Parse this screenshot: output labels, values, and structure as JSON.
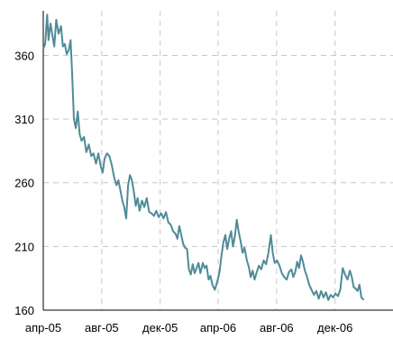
{
  "chart_data": {
    "type": "line",
    "title": "",
    "xlabel": "",
    "ylabel": "",
    "x_ticks": [
      "апр-05",
      "авг-05",
      "дек-05",
      "апр-06",
      "авг-06",
      "дек-06"
    ],
    "x_tick_dates": [
      "2005-04-01",
      "2005-08-01",
      "2005-12-01",
      "2006-04-01",
      "2006-08-01",
      "2006-12-01"
    ],
    "xlim": [
      "2005-04-01",
      "2007-04-01"
    ],
    "y_ticks": [
      160,
      210,
      260,
      310,
      360
    ],
    "ylim": [
      160,
      395
    ],
    "grid": true,
    "legend": "none",
    "series": [
      {
        "color": "#4f8b98",
        "points": [
          [
            "2005-04-01",
            365
          ],
          [
            "2005-04-05",
            369
          ],
          [
            "2005-04-09",
            392
          ],
          [
            "2005-04-12",
            372
          ],
          [
            "2005-04-16",
            385
          ],
          [
            "2005-04-20",
            376
          ],
          [
            "2005-04-24",
            367
          ],
          [
            "2005-04-28",
            388
          ],
          [
            "2005-05-03",
            377
          ],
          [
            "2005-05-08",
            383
          ],
          [
            "2005-05-12",
            367
          ],
          [
            "2005-05-16",
            369
          ],
          [
            "2005-05-20",
            361
          ],
          [
            "2005-05-24",
            364
          ],
          [
            "2005-05-28",
            372
          ],
          [
            "2005-05-31",
            348
          ],
          [
            "2005-06-04",
            310
          ],
          [
            "2005-06-08",
            303
          ],
          [
            "2005-06-12",
            316
          ],
          [
            "2005-06-16",
            298
          ],
          [
            "2005-06-20",
            293
          ],
          [
            "2005-06-25",
            296
          ],
          [
            "2005-06-30",
            284
          ],
          [
            "2005-07-05",
            290
          ],
          [
            "2005-07-10",
            281
          ],
          [
            "2005-07-15",
            283
          ],
          [
            "2005-07-20",
            275
          ],
          [
            "2005-07-25",
            283
          ],
          [
            "2005-07-30",
            273
          ],
          [
            "2005-08-03",
            268
          ],
          [
            "2005-08-07",
            279
          ],
          [
            "2005-08-12",
            283
          ],
          [
            "2005-08-17",
            281
          ],
          [
            "2005-08-22",
            274
          ],
          [
            "2005-08-27",
            264
          ],
          [
            "2005-09-01",
            258
          ],
          [
            "2005-09-05",
            262
          ],
          [
            "2005-09-09",
            254
          ],
          [
            "2005-09-13",
            246
          ],
          [
            "2005-09-17",
            241
          ],
          [
            "2005-09-21",
            232
          ],
          [
            "2005-09-25",
            258
          ],
          [
            "2005-09-29",
            266
          ],
          [
            "2005-10-03",
            262
          ],
          [
            "2005-10-07",
            253
          ],
          [
            "2005-10-11",
            242
          ],
          [
            "2005-10-15",
            248
          ],
          [
            "2005-10-19",
            238
          ],
          [
            "2005-10-24",
            246
          ],
          [
            "2005-10-29",
            241
          ],
          [
            "2005-11-03",
            248
          ],
          [
            "2005-11-08",
            237
          ],
          [
            "2005-11-13",
            236
          ],
          [
            "2005-11-18",
            234
          ],
          [
            "2005-11-23",
            238
          ],
          [
            "2005-11-28",
            233
          ],
          [
            "2005-12-03",
            236
          ],
          [
            "2005-12-08",
            232
          ],
          [
            "2005-12-13",
            237
          ],
          [
            "2005-12-18",
            229
          ],
          [
            "2005-12-23",
            227
          ],
          [
            "2005-12-28",
            222
          ],
          [
            "2006-01-02",
            220
          ],
          [
            "2006-01-06",
            216
          ],
          [
            "2006-01-10",
            226
          ],
          [
            "2006-01-14",
            219
          ],
          [
            "2006-01-18",
            212
          ],
          [
            "2006-01-22",
            209
          ],
          [
            "2006-01-26",
            208
          ],
          [
            "2006-01-30",
            192
          ],
          [
            "2006-02-03",
            188
          ],
          [
            "2006-02-07",
            196
          ],
          [
            "2006-02-11",
            189
          ],
          [
            "2006-02-15",
            193
          ],
          [
            "2006-02-19",
            197
          ],
          [
            "2006-02-23",
            189
          ],
          [
            "2006-02-28",
            197
          ],
          [
            "2006-03-04",
            193
          ],
          [
            "2006-03-08",
            195
          ],
          [
            "2006-03-12",
            184
          ],
          [
            "2006-03-16",
            187
          ],
          [
            "2006-03-20",
            180
          ],
          [
            "2006-03-25",
            176
          ],
          [
            "2006-03-30",
            182
          ],
          [
            "2006-04-04",
            190
          ],
          [
            "2006-04-08",
            203
          ],
          [
            "2006-04-12",
            213
          ],
          [
            "2006-04-16",
            219
          ],
          [
            "2006-04-20",
            208
          ],
          [
            "2006-04-24",
            216
          ],
          [
            "2006-04-28",
            222
          ],
          [
            "2006-05-02",
            210
          ],
          [
            "2006-05-06",
            218
          ],
          [
            "2006-05-10",
            231
          ],
          [
            "2006-05-14",
            221
          ],
          [
            "2006-05-18",
            214
          ],
          [
            "2006-05-22",
            205
          ],
          [
            "2006-05-26",
            209
          ],
          [
            "2006-05-31",
            199
          ],
          [
            "2006-06-04",
            194
          ],
          [
            "2006-06-08",
            186
          ],
          [
            "2006-06-12",
            191
          ],
          [
            "2006-06-16",
            184
          ],
          [
            "2006-06-20",
            189
          ],
          [
            "2006-06-25",
            195
          ],
          [
            "2006-06-30",
            192
          ],
          [
            "2006-07-05",
            199
          ],
          [
            "2006-07-10",
            196
          ],
          [
            "2006-07-15",
            205
          ],
          [
            "2006-07-20",
            219
          ],
          [
            "2006-07-24",
            205
          ],
          [
            "2006-07-28",
            197
          ],
          [
            "2006-08-02",
            199
          ],
          [
            "2006-08-07",
            195
          ],
          [
            "2006-08-12",
            189
          ],
          [
            "2006-08-17",
            186
          ],
          [
            "2006-08-22",
            184
          ],
          [
            "2006-08-27",
            190
          ],
          [
            "2006-09-01",
            192
          ],
          [
            "2006-09-05",
            186
          ],
          [
            "2006-09-09",
            190
          ],
          [
            "2006-09-13",
            198
          ],
          [
            "2006-09-17",
            193
          ],
          [
            "2006-09-21",
            203
          ],
          [
            "2006-09-25",
            198
          ],
          [
            "2006-09-29",
            191
          ],
          [
            "2006-10-03",
            187
          ],
          [
            "2006-10-08",
            180
          ],
          [
            "2006-10-13",
            176
          ],
          [
            "2006-10-18",
            172
          ],
          [
            "2006-10-23",
            175
          ],
          [
            "2006-10-28",
            169
          ],
          [
            "2006-11-02",
            175
          ],
          [
            "2006-11-07",
            170
          ],
          [
            "2006-11-12",
            174
          ],
          [
            "2006-11-17",
            168
          ],
          [
            "2006-11-22",
            172
          ],
          [
            "2006-11-27",
            170
          ],
          [
            "2006-12-02",
            173
          ],
          [
            "2006-12-07",
            171
          ],
          [
            "2006-12-12",
            176
          ],
          [
            "2006-12-17",
            193
          ],
          [
            "2006-12-22",
            188
          ],
          [
            "2006-12-27",
            184
          ],
          [
            "2007-01-01",
            191
          ],
          [
            "2007-01-05",
            186
          ],
          [
            "2007-01-09",
            178
          ],
          [
            "2007-01-13",
            177
          ],
          [
            "2007-01-17",
            175
          ],
          [
            "2007-01-21",
            180
          ],
          [
            "2007-01-25",
            170
          ],
          [
            "2007-01-30",
            168
          ]
        ]
      }
    ]
  }
}
